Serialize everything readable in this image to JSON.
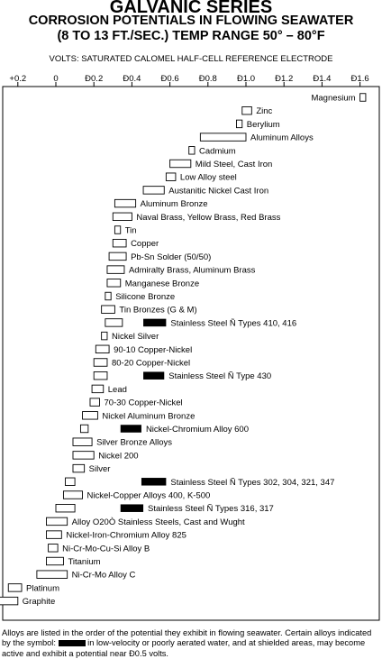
{
  "header": {
    "title": "GALVANIC SERIES",
    "subtitle_line1": "CORROSION POTENTIALS IN FLOWING SEAWATER",
    "subtitle_line2": "(8 TO 13 FT./SEC.) TEMP RANGE 50° – 80°F",
    "axis_caption": "VOLTS: SATURATED CALOMEL HALF-CELL REFERENCE ELECTRODE"
  },
  "footnote": {
    "part1": "Alloys are listed in the order of the potential they exhibit in flowing seawater. Certain alloys indicated by the symbol:",
    "part2": "in low-velocity or poorly aerated water, and at shielded areas, may become active and exhibit a potential near Ð0.5 volts."
  },
  "chart_data": {
    "type": "bar",
    "orientation": "horizontal floating range",
    "xlabel": "VOLTS: SATURATED CALOMEL HALF-CELL REFERENCE ELECTRODE",
    "x_axis_direction": "+0.2 at left, increasingly negative to the right",
    "ticks": [
      {
        "value": 0.2,
        "label": "+0.2"
      },
      {
        "value": 0,
        "label": "0"
      },
      {
        "value": -0.2,
        "label": "Ð0.2"
      },
      {
        "value": -0.4,
        "label": "Ð0.4"
      },
      {
        "value": -0.6,
        "label": "Ð0.6"
      },
      {
        "value": -0.8,
        "label": "Ð0.8"
      },
      {
        "value": -1.0,
        "label": "Ð1.0"
      },
      {
        "value": -1.2,
        "label": "Ð1.2"
      },
      {
        "value": -1.4,
        "label": "Ð1.4"
      },
      {
        "value": -1.6,
        "label": "Ð1.6"
      }
    ],
    "xlim": [
      0.2,
      -1.65
    ],
    "materials": [
      {
        "name": "Magnesium",
        "range": [
          -1.6,
          -1.63
        ],
        "active_range": null,
        "label_side": "left"
      },
      {
        "name": "Zinc",
        "range": [
          -0.98,
          -1.03
        ],
        "active_range": null,
        "label_side": "right"
      },
      {
        "name": "Berylium",
        "range": [
          -0.95,
          -0.98
        ],
        "active_range": null,
        "label_side": "right"
      },
      {
        "name": "Aluminum Alloys",
        "range": [
          -0.76,
          -1.0
        ],
        "active_range": null,
        "label_side": "right"
      },
      {
        "name": "Cadmium",
        "range": [
          -0.7,
          -0.73
        ],
        "active_range": null,
        "label_side": "right"
      },
      {
        "name": "Mild Steel, Cast Iron",
        "range": [
          -0.6,
          -0.71
        ],
        "active_range": null,
        "label_side": "right"
      },
      {
        "name": "Low Alloy steel",
        "range": [
          -0.58,
          -0.63
        ],
        "active_range": null,
        "label_side": "right"
      },
      {
        "name": "Austanitic Nickel Cast Iron",
        "range": [
          -0.46,
          -0.57
        ],
        "active_range": null,
        "label_side": "right"
      },
      {
        "name": "Aluminum Bronze",
        "range": [
          -0.31,
          -0.42
        ],
        "active_range": null,
        "label_side": "right"
      },
      {
        "name": "Naval Brass, Yellow Brass, Red Brass",
        "range": [
          -0.3,
          -0.4
        ],
        "active_range": null,
        "label_side": "right"
      },
      {
        "name": "Tin",
        "range": [
          -0.31,
          -0.34
        ],
        "active_range": null,
        "label_side": "right"
      },
      {
        "name": "Copper",
        "range": [
          -0.3,
          -0.37
        ],
        "active_range": null,
        "label_side": "right"
      },
      {
        "name": "Pb-Sn Solder (50/50)",
        "range": [
          -0.28,
          -0.37
        ],
        "active_range": null,
        "label_side": "right"
      },
      {
        "name": "Admiralty Brass, Aluminum Brass",
        "range": [
          -0.27,
          -0.36
        ],
        "active_range": null,
        "label_side": "right"
      },
      {
        "name": "Manganese Bronze",
        "range": [
          -0.27,
          -0.34
        ],
        "active_range": null,
        "label_side": "right"
      },
      {
        "name": "Silicone Bronze",
        "range": [
          -0.26,
          -0.29
        ],
        "active_range": null,
        "label_side": "right"
      },
      {
        "name": "Tin Bronzes (G & M)",
        "range": [
          -0.24,
          -0.31
        ],
        "active_range": null,
        "label_side": "right"
      },
      {
        "name": "Stainless Steel Ñ Types 410, 416",
        "range": [
          -0.26,
          -0.35
        ],
        "active_range": [
          -0.46,
          -0.58
        ],
        "label_side": "right"
      },
      {
        "name": "Nickel Silver",
        "range": [
          -0.24,
          -0.27
        ],
        "active_range": null,
        "label_side": "right"
      },
      {
        "name": "90-10 Copper-Nickel",
        "range": [
          -0.21,
          -0.28
        ],
        "active_range": null,
        "label_side": "right"
      },
      {
        "name": "80-20 Copper-Nickel",
        "range": [
          -0.2,
          -0.27
        ],
        "active_range": null,
        "label_side": "right"
      },
      {
        "name": "Stainless Steel Ñ Type 430",
        "range": [
          -0.2,
          -0.27
        ],
        "active_range": [
          -0.46,
          -0.57
        ],
        "label_side": "right"
      },
      {
        "name": "Lead",
        "range": [
          -0.19,
          -0.25
        ],
        "active_range": null,
        "label_side": "right"
      },
      {
        "name": "70-30 Copper-Nickel",
        "range": [
          -0.18,
          -0.23
        ],
        "active_range": null,
        "label_side": "right"
      },
      {
        "name": "Nickel Aluminum Bronze",
        "range": [
          -0.14,
          -0.22
        ],
        "active_range": null,
        "label_side": "right"
      },
      {
        "name": "Nickel-Chromium Alloy 600",
        "range": [
          -0.13,
          -0.17
        ],
        "active_range": [
          -0.34,
          -0.45
        ],
        "label_side": "right"
      },
      {
        "name": "Silver Bronze Alloys",
        "range": [
          -0.09,
          -0.19
        ],
        "active_range": null,
        "label_side": "right"
      },
      {
        "name": "Nickel 200",
        "range": [
          -0.09,
          -0.2
        ],
        "active_range": null,
        "label_side": "right"
      },
      {
        "name": "Silver",
        "range": [
          -0.09,
          -0.15
        ],
        "active_range": null,
        "label_side": "right"
      },
      {
        "name": "Stainless Steel Ñ Types 302, 304, 321, 347",
        "range": [
          -0.05,
          -0.1
        ],
        "active_range": [
          -0.45,
          -0.58
        ],
        "label_side": "right"
      },
      {
        "name": "Nickel-Copper Alloys 400, K-500",
        "range": [
          -0.04,
          -0.14
        ],
        "active_range": null,
        "label_side": "right"
      },
      {
        "name": "Stainless Steel Ñ Types 316, 317",
        "range": [
          0.0,
          -0.1
        ],
        "active_range": [
          -0.34,
          -0.46
        ],
        "label_side": "right"
      },
      {
        "name": "Alloy O20Ò Stainless Steels, Cast and Wught",
        "range": [
          0.05,
          -0.06
        ],
        "active_range": null,
        "label_side": "right"
      },
      {
        "name": "Nickel-Iron-Chromium Alloy 825",
        "range": [
          0.05,
          -0.03
        ],
        "active_range": null,
        "label_side": "right"
      },
      {
        "name": "Ni-Cr-Mo-Cu-Si Alloy B",
        "range": [
          0.04,
          -0.01
        ],
        "active_range": null,
        "label_side": "right"
      },
      {
        "name": "Titanium",
        "range": [
          0.05,
          -0.04
        ],
        "active_range": null,
        "label_side": "right"
      },
      {
        "name": "Ni-Cr-Mo Alloy C",
        "range": [
          0.1,
          -0.06
        ],
        "active_range": null,
        "label_side": "right"
      },
      {
        "name": "Platinum",
        "range": [
          0.25,
          0.18
        ],
        "active_range": null,
        "label_side": "right"
      },
      {
        "name": "Graphite",
        "range": [
          0.3,
          0.2
        ],
        "active_range": null,
        "label_side": "right"
      }
    ]
  }
}
